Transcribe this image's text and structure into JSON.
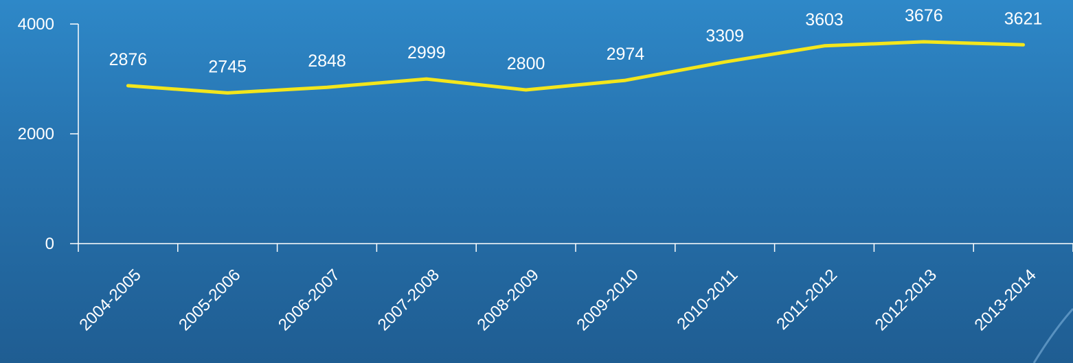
{
  "colors": {
    "line": "#f3e61c",
    "text": "#ffffff",
    "axis": "#ffffff"
  },
  "chart_data": {
    "type": "line",
    "title": "",
    "xlabel": "",
    "ylabel": "",
    "categories": [
      "2004-2005",
      "2005-2006",
      "2006-2007",
      "2007-2008",
      "2008-2009",
      "2009-2010",
      "2010-2011",
      "2011-2012",
      "2012-2013",
      "2013-2014"
    ],
    "series": [
      {
        "values": [
          2876,
          2745,
          2848,
          2999,
          2800,
          2974,
          3309,
          3603,
          3676,
          3621
        ]
      }
    ],
    "yticks": [
      0,
      2000,
      4000
    ],
    "ylim": [
      0,
      4000
    ],
    "grid": false,
    "legend": "none",
    "data_labels": true
  }
}
